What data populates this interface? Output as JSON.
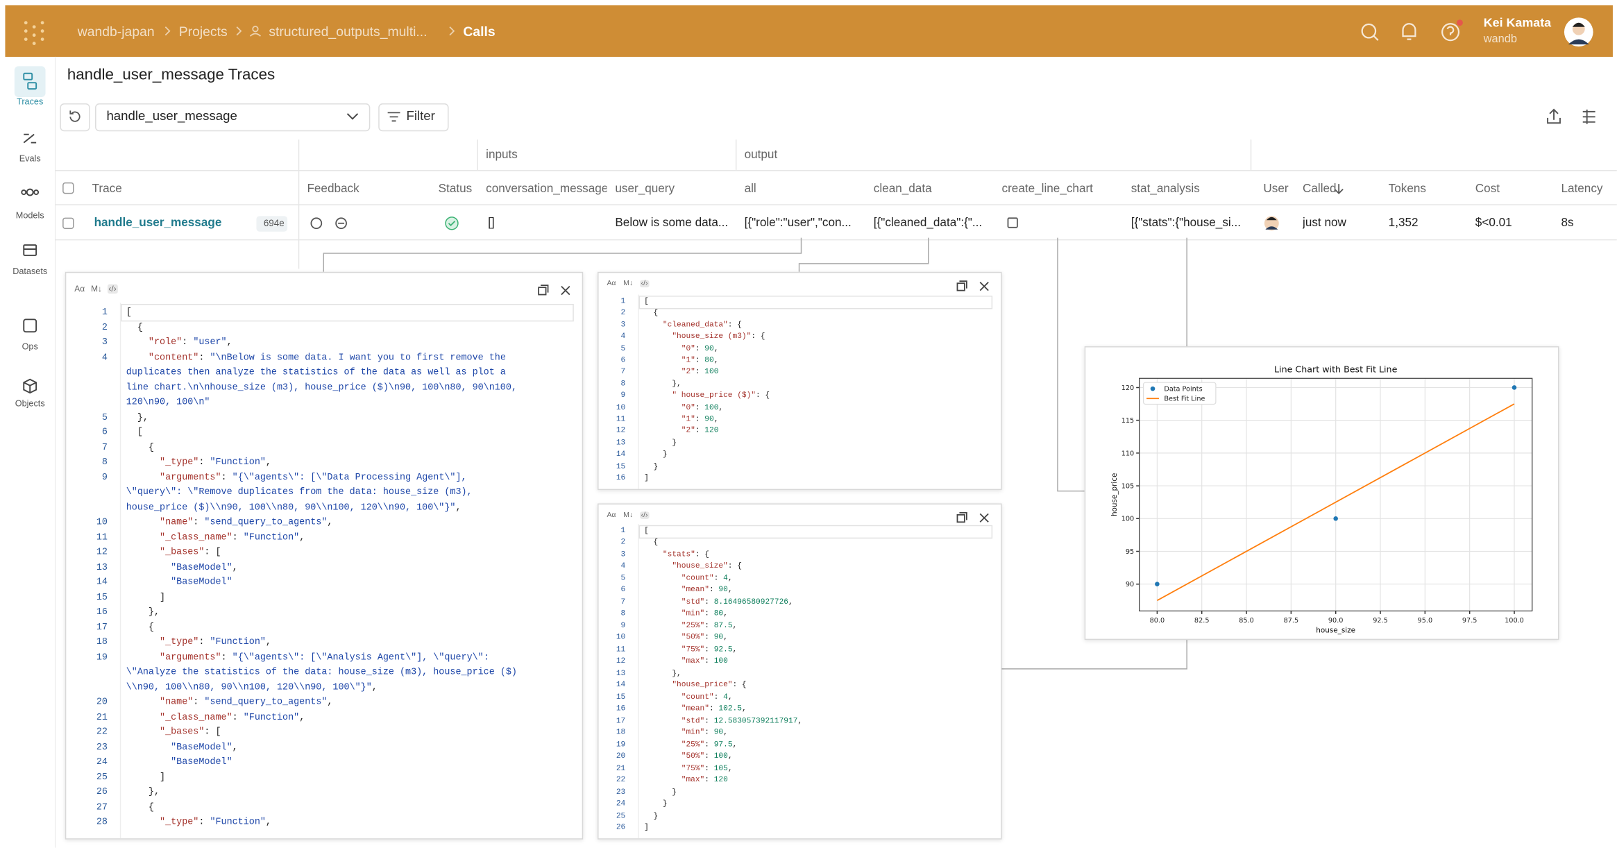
{
  "header": {
    "breadcrumb": [
      "wandb-japan",
      "Projects",
      "structured_outputs_multi...",
      "Calls"
    ],
    "user_name": "Kei Kamata",
    "user_org": "wandb"
  },
  "sidebar": [
    "Traces",
    "Evals",
    "Models",
    "Datasets",
    "Ops",
    "Objects"
  ],
  "title": "handle_user_message Traces",
  "toolbar": {
    "op_select": "handle_user_message",
    "filter": "Filter"
  },
  "table": {
    "groups": [
      "inputs",
      "output"
    ],
    "columns": [
      "Trace",
      "Feedback",
      "Status",
      "conversation_message",
      "user_query",
      "all",
      "clean_data",
      "create_line_chart",
      "stat_analysis",
      "User",
      "Called",
      "Tokens",
      "Cost",
      "Latency"
    ],
    "rows": [
      {
        "trace": "handle_user_message",
        "trace_id": "694e",
        "conversation_message": "[]",
        "user_query": "Below is some data...",
        "all": "[{\"role\":\"user\",\"con...",
        "clean_data": "[{\"cleaned_data\":{\"...",
        "stat_analysis": "[{\"stats\":{\"house_si...",
        "called": "just now",
        "tokens": "1,352",
        "cost": "$<0.01",
        "latency": "8s"
      }
    ]
  },
  "code_view_modes": [
    "Aα",
    "M↓",
    "‹/›"
  ],
  "panels": [
    {
      "lines": [
        {
          "no": 1,
          "code": [
            "["
          ]
        },
        {
          "no": 2,
          "code": [
            "  {"
          ]
        },
        {
          "no": 3,
          "code": [
            "    \"role\": \"user\","
          ]
        },
        {
          "no": 4,
          "code": [
            "    \"content\": \"\\nBelow is some data. I want you to first remove the",
            "duplicates then analyze the statistics of the data as well as plot a",
            "line chart.\\n\\nhouse_size (m3), house_price ($)\\n90, 100\\n80, 90\\n100,",
            "120\\n90, 100\\n\""
          ]
        },
        {
          "no": 5,
          "code": [
            "  },"
          ]
        },
        {
          "no": 6,
          "code": [
            "  ["
          ]
        },
        {
          "no": 7,
          "code": [
            "    {"
          ]
        },
        {
          "no": 8,
          "code": [
            "      \"_type\": \"Function\","
          ]
        },
        {
          "no": 9,
          "code": [
            "      \"arguments\": \"{\\\"agents\\\": [\\\"Data Processing Agent\\\"],",
            "\\\"query\\\": \\\"Remove duplicates from the data: house_size (m3),",
            "house_price ($)\\\\n90, 100\\\\n80, 90\\\\n100, 120\\\\n90, 100\\\"}\","
          ]
        },
        {
          "no": 10,
          "code": [
            "      \"name\": \"send_query_to_agents\","
          ]
        },
        {
          "no": 11,
          "code": [
            "      \"_class_name\": \"Function\","
          ]
        },
        {
          "no": 12,
          "code": [
            "      \"_bases\": ["
          ]
        },
        {
          "no": 13,
          "code": [
            "        \"BaseModel\","
          ]
        },
        {
          "no": 14,
          "code": [
            "        \"BaseModel\""
          ]
        },
        {
          "no": 15,
          "code": [
            "      ]"
          ]
        },
        {
          "no": 16,
          "code": [
            "    },"
          ]
        },
        {
          "no": 17,
          "code": [
            "    {"
          ]
        },
        {
          "no": 18,
          "code": [
            "      \"_type\": \"Function\","
          ]
        },
        {
          "no": 19,
          "code": [
            "      \"arguments\": \"{\\\"agents\\\": [\\\"Analysis Agent\\\"], \\\"query\\\":",
            "\\\"Analyze the statistics of the data: house_size (m3), house_price ($)",
            "\\\\n90, 100\\\\n80, 90\\\\n100, 120\\\\n90, 100\\\"}\","
          ]
        },
        {
          "no": 20,
          "code": [
            "      \"name\": \"send_query_to_agents\","
          ]
        },
        {
          "no": 21,
          "code": [
            "      \"_class_name\": \"Function\","
          ]
        },
        {
          "no": 22,
          "code": [
            "      \"_bases\": ["
          ]
        },
        {
          "no": 23,
          "code": [
            "        \"BaseModel\","
          ]
        },
        {
          "no": 24,
          "code": [
            "        \"BaseModel\""
          ]
        },
        {
          "no": 25,
          "code": [
            "      ]"
          ]
        },
        {
          "no": 26,
          "code": [
            "    },"
          ]
        },
        {
          "no": 27,
          "code": [
            "    {"
          ]
        },
        {
          "no": 28,
          "code": [
            "      \"_type\": \"Function\","
          ]
        }
      ]
    },
    {
      "lines": [
        {
          "no": 1,
          "code": [
            "["
          ]
        },
        {
          "no": 2,
          "code": [
            "  {"
          ]
        },
        {
          "no": 3,
          "code": [
            "    \"cleaned_data\": {"
          ]
        },
        {
          "no": 4,
          "code": [
            "      \"house_size (m3)\": {"
          ]
        },
        {
          "no": 5,
          "code": [
            "        \"0\": 90,"
          ]
        },
        {
          "no": 6,
          "code": [
            "        \"1\": 80,"
          ]
        },
        {
          "no": 7,
          "code": [
            "        \"2\": 100"
          ]
        },
        {
          "no": 8,
          "code": [
            "      },"
          ]
        },
        {
          "no": 9,
          "code": [
            "      \" house_price ($)\": {"
          ]
        },
        {
          "no": 10,
          "code": [
            "        \"0\": 100,"
          ]
        },
        {
          "no": 11,
          "code": [
            "        \"1\": 90,"
          ]
        },
        {
          "no": 12,
          "code": [
            "        \"2\": 120"
          ]
        },
        {
          "no": 13,
          "code": [
            "      }"
          ]
        },
        {
          "no": 14,
          "code": [
            "    }"
          ]
        },
        {
          "no": 15,
          "code": [
            "  }"
          ]
        },
        {
          "no": 16,
          "code": [
            "]"
          ]
        }
      ]
    },
    {
      "lines": [
        {
          "no": 1,
          "code": [
            "["
          ]
        },
        {
          "no": 2,
          "code": [
            "  {"
          ]
        },
        {
          "no": 3,
          "code": [
            "    \"stats\": {"
          ]
        },
        {
          "no": 4,
          "code": [
            "      \"house_size\": {"
          ]
        },
        {
          "no": 5,
          "code": [
            "        \"count\": 4,"
          ]
        },
        {
          "no": 6,
          "code": [
            "        \"mean\": 90,"
          ]
        },
        {
          "no": 7,
          "code": [
            "        \"std\": 8.16496580927726,"
          ]
        },
        {
          "no": 8,
          "code": [
            "        \"min\": 80,"
          ]
        },
        {
          "no": 9,
          "code": [
            "        \"25%\": 87.5,"
          ]
        },
        {
          "no": 10,
          "code": [
            "        \"50%\": 90,"
          ]
        },
        {
          "no": 11,
          "code": [
            "        \"75%\": 92.5,"
          ]
        },
        {
          "no": 12,
          "code": [
            "        \"max\": 100"
          ]
        },
        {
          "no": 13,
          "code": [
            "      },"
          ]
        },
        {
          "no": 14,
          "code": [
            "      \"house_price\": {"
          ]
        },
        {
          "no": 15,
          "code": [
            "        \"count\": 4,"
          ]
        },
        {
          "no": 16,
          "code": [
            "        \"mean\": 102.5,"
          ]
        },
        {
          "no": 17,
          "code": [
            "        \"std\": 12.583057392117917,"
          ]
        },
        {
          "no": 18,
          "code": [
            "        \"min\": 90,"
          ]
        },
        {
          "no": 19,
          "code": [
            "        \"25%\": 97.5,"
          ]
        },
        {
          "no": 20,
          "code": [
            "        \"50%\": 100,"
          ]
        },
        {
          "no": 21,
          "code": [
            "        \"75%\": 105,"
          ]
        },
        {
          "no": 22,
          "code": [
            "        \"max\": 120"
          ]
        },
        {
          "no": 23,
          "code": [
            "      }"
          ]
        },
        {
          "no": 24,
          "code": [
            "    }"
          ]
        },
        {
          "no": 25,
          "code": [
            "  }"
          ]
        },
        {
          "no": 26,
          "code": [
            "]"
          ]
        }
      ]
    }
  ],
  "chart_data": {
    "type": "line",
    "title": "Line Chart with Best Fit Line",
    "x_label": "house_size",
    "y_label": "house_price",
    "xlim": [
      79,
      101
    ],
    "ylim": [
      85.9,
      121.4
    ],
    "xticks": [
      {
        "value": 80,
        "label": "80.0"
      },
      {
        "value": 82.5,
        "label": "82.5"
      },
      {
        "value": 85,
        "label": "85.0"
      },
      {
        "value": 87.5,
        "label": "87.5"
      },
      {
        "value": 90,
        "label": "90.0"
      },
      {
        "value": 92.5,
        "label": "92.5"
      },
      {
        "value": 95,
        "label": "95.0"
      },
      {
        "value": 97.5,
        "label": "97.5"
      },
      {
        "value": 100,
        "label": "100.0"
      }
    ],
    "yticks": [
      90,
      95,
      100,
      105,
      110,
      115,
      120
    ],
    "grid": true,
    "legend": "upper-left",
    "series": [
      {
        "name": "Data Points",
        "color": "#1f77b4",
        "mode": "markers",
        "x": [
          80,
          90,
          100
        ],
        "values": [
          90,
          100,
          120
        ]
      },
      {
        "name": "Best Fit Line",
        "color": "#ff7f0e",
        "mode": "line",
        "x": [
          80,
          100
        ],
        "values": [
          87.5,
          117.5
        ]
      }
    ]
  }
}
